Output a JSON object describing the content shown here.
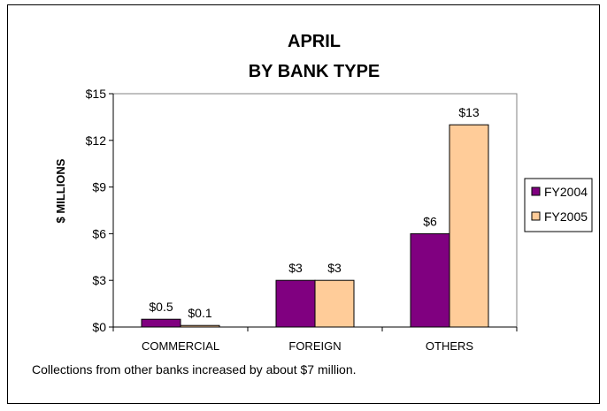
{
  "caption": "Collections from other banks increased by about $7 million.",
  "chart_data": {
    "type": "bar",
    "title": [
      "APRIL",
      "BY BANK TYPE"
    ],
    "ylabel": "$ MILLIONS",
    "xlabel": "",
    "categories": [
      "COMMERCIAL",
      "FOREIGN",
      "OTHERS"
    ],
    "series": [
      {
        "name": "FY2004",
        "values": [
          0.5,
          3,
          6
        ],
        "labels": [
          "$0.5",
          "$3",
          "$6"
        ],
        "color": "#800080"
      },
      {
        "name": "FY2005",
        "values": [
          0.1,
          3,
          13
        ],
        "labels": [
          "$0.1",
          "$3",
          "$13"
        ],
        "color": "#FFCC99"
      }
    ],
    "ylim": [
      0,
      15
    ],
    "yticks": [
      0,
      3,
      6,
      9,
      12,
      15
    ],
    "ytick_labels": [
      "$0",
      "$3",
      "$6",
      "$9",
      "$12",
      "$15"
    ],
    "grid": false,
    "legend": "right"
  }
}
